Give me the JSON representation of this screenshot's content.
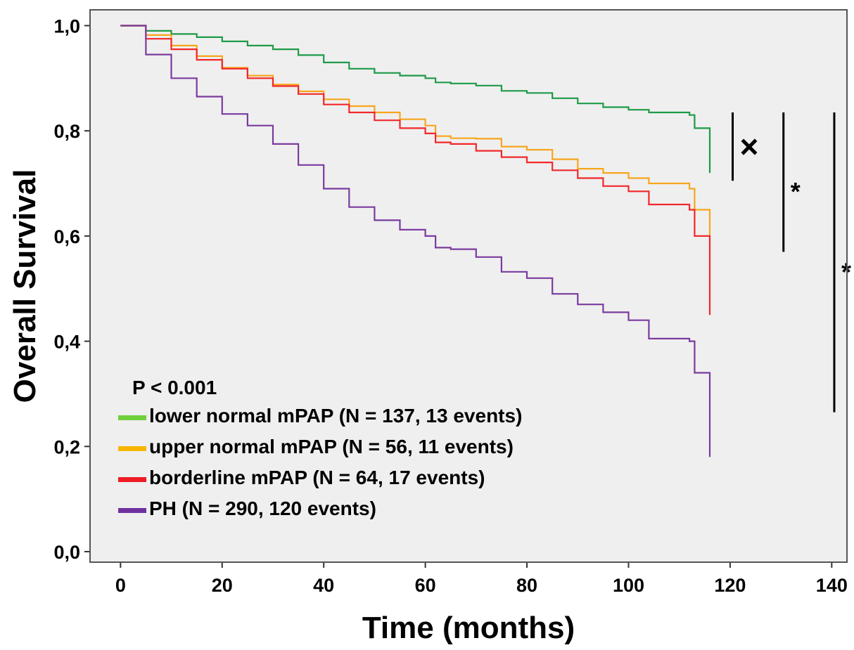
{
  "chart_data": {
    "type": "line",
    "step": true,
    "xlabel": "Time (months)",
    "ylabel": "Overall Survival",
    "xlim": [
      -6,
      143
    ],
    "ylim": [
      -0.02,
      1.03
    ],
    "xticks": [
      0,
      20,
      40,
      60,
      80,
      100,
      120,
      140
    ],
    "xtick_labels": [
      "0",
      "20",
      "40",
      "60",
      "80",
      "100",
      "120",
      "140"
    ],
    "yticks": [
      0.0,
      0.2,
      0.4,
      0.6,
      0.8,
      1.0
    ],
    "ytick_labels": [
      "0,0",
      "0,2",
      "0,4",
      "0,6",
      "0,8",
      "1,0"
    ],
    "grid": false,
    "background": "#efefef",
    "legend_title": "P < 0.001",
    "legend_position": "bottom-left",
    "series": [
      {
        "name": "lower normal mPAP (N = 137, 13 events)",
        "line_color": "#1e9a48",
        "legend_color": "#6fcf3c",
        "points": [
          [
            0,
            1.0
          ],
          [
            5,
            0.99
          ],
          [
            10,
            0.984
          ],
          [
            15,
            0.978
          ],
          [
            20,
            0.97
          ],
          [
            25,
            0.962
          ],
          [
            30,
            0.955
          ],
          [
            35,
            0.944
          ],
          [
            40,
            0.93
          ],
          [
            45,
            0.918
          ],
          [
            50,
            0.91
          ],
          [
            55,
            0.905
          ],
          [
            60,
            0.9
          ],
          [
            62,
            0.892
          ],
          [
            65,
            0.89
          ],
          [
            70,
            0.886
          ],
          [
            75,
            0.876
          ],
          [
            80,
            0.872
          ],
          [
            85,
            0.862
          ],
          [
            90,
            0.852
          ],
          [
            95,
            0.845
          ],
          [
            100,
            0.84
          ],
          [
            104,
            0.835
          ],
          [
            112,
            0.83
          ],
          [
            113,
            0.805
          ],
          [
            116,
            0.805
          ],
          [
            116,
            0.72
          ]
        ]
      },
      {
        "name": "upper normal mPAP (N = 56, 11 events)",
        "line_color": "#f7a61c",
        "legend_color": "#f7b500",
        "points": [
          [
            0,
            1.0
          ],
          [
            5,
            0.982
          ],
          [
            10,
            0.962
          ],
          [
            15,
            0.942
          ],
          [
            20,
            0.92
          ],
          [
            25,
            0.905
          ],
          [
            30,
            0.888
          ],
          [
            35,
            0.875
          ],
          [
            40,
            0.86
          ],
          [
            45,
            0.847
          ],
          [
            50,
            0.835
          ],
          [
            55,
            0.822
          ],
          [
            60,
            0.81
          ],
          [
            62,
            0.79
          ],
          [
            65,
            0.786
          ],
          [
            70,
            0.785
          ],
          [
            75,
            0.77
          ],
          [
            80,
            0.764
          ],
          [
            85,
            0.746
          ],
          [
            90,
            0.728
          ],
          [
            95,
            0.72
          ],
          [
            100,
            0.71
          ],
          [
            104,
            0.7
          ],
          [
            112,
            0.69
          ],
          [
            113,
            0.65
          ],
          [
            116,
            0.65
          ],
          [
            116,
            0.6
          ]
        ]
      },
      {
        "name": "borderline mPAP (N = 64, 17 events)",
        "line_color": "#f1282b",
        "legend_color": "#ee1c25",
        "points": [
          [
            0,
            1.0
          ],
          [
            5,
            0.975
          ],
          [
            10,
            0.955
          ],
          [
            15,
            0.935
          ],
          [
            20,
            0.918
          ],
          [
            25,
            0.9
          ],
          [
            30,
            0.885
          ],
          [
            35,
            0.87
          ],
          [
            40,
            0.85
          ],
          [
            45,
            0.835
          ],
          [
            50,
            0.82
          ],
          [
            55,
            0.805
          ],
          [
            60,
            0.795
          ],
          [
            62,
            0.778
          ],
          [
            65,
            0.775
          ],
          [
            70,
            0.762
          ],
          [
            75,
            0.75
          ],
          [
            80,
            0.74
          ],
          [
            85,
            0.725
          ],
          [
            90,
            0.71
          ],
          [
            95,
            0.695
          ],
          [
            100,
            0.685
          ],
          [
            104,
            0.66
          ],
          [
            112,
            0.65
          ],
          [
            113,
            0.6
          ],
          [
            116,
            0.6
          ],
          [
            116,
            0.45
          ]
        ]
      },
      {
        "name": "PH (N = 290, 120 events)",
        "line_color": "#7a3b9f",
        "legend_color": "#7030a0",
        "points": [
          [
            0,
            1.0
          ],
          [
            5,
            0.945
          ],
          [
            10,
            0.9
          ],
          [
            15,
            0.865
          ],
          [
            20,
            0.832
          ],
          [
            25,
            0.81
          ],
          [
            30,
            0.775
          ],
          [
            35,
            0.735
          ],
          [
            40,
            0.69
          ],
          [
            45,
            0.655
          ],
          [
            50,
            0.63
          ],
          [
            55,
            0.612
          ],
          [
            60,
            0.6
          ],
          [
            62,
            0.578
          ],
          [
            65,
            0.575
          ],
          [
            70,
            0.56
          ],
          [
            75,
            0.532
          ],
          [
            80,
            0.52
          ],
          [
            85,
            0.49
          ],
          [
            90,
            0.47
          ],
          [
            95,
            0.455
          ],
          [
            100,
            0.44
          ],
          [
            104,
            0.405
          ],
          [
            112,
            0.4
          ],
          [
            113,
            0.34
          ],
          [
            116,
            0.34
          ],
          [
            116,
            0.18
          ]
        ]
      }
    ],
    "annotations": [
      {
        "symbol": "×",
        "x_data": 120.5,
        "y_from": 0.705,
        "y_to": 0.835
      },
      {
        "symbol": "*",
        "x_data": 130.5,
        "y_from": 0.57,
        "y_to": 0.835
      },
      {
        "symbol": "*",
        "x_data": 140.5,
        "y_from": 0.265,
        "y_to": 0.835
      }
    ]
  }
}
